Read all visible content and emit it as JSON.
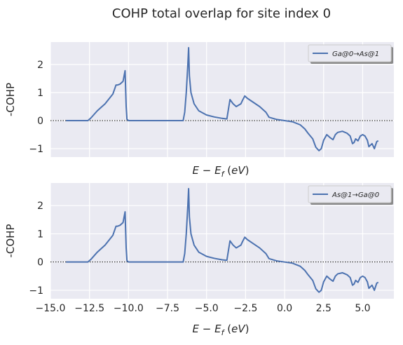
{
  "figure": {
    "title": "COHP total overlap for site index 0",
    "colors": {
      "background": "#eaeaf2",
      "grid": "#ffffff",
      "line": "#4c72b0",
      "zero_line": "#000000",
      "text": "#262626"
    }
  },
  "chart_data": [
    {
      "type": "line",
      "title": "",
      "xlabel": "E - E_f (eV)",
      "ylabel": "-COHP",
      "xlim": [
        -15,
        7
      ],
      "ylim": [
        -1.3,
        2.8
      ],
      "xticks": [
        -15.0,
        -12.5,
        -10.0,
        -7.5,
        -5.0,
        -2.5,
        0.0,
        2.5,
        5.0
      ],
      "xtick_labels": [
        "−15.0",
        "−12.5",
        "−10.0",
        "−7.5",
        "−5.0",
        "−2.5",
        "0.0",
        "2.5",
        "5.0"
      ],
      "show_xtick_labels": false,
      "yticks": [
        -1,
        0,
        1,
        2
      ],
      "ytick_labels": [
        "−1",
        "0",
        "1",
        "2"
      ],
      "grid": true,
      "zero_line": "dotted horizontal at y = 0",
      "legend_position": "top-right",
      "series": [
        {
          "name": "Ga@0→As@1",
          "x": [
            -14.0,
            -12.6,
            -12.4,
            -12.0,
            -11.5,
            -11.0,
            -10.8,
            -10.7,
            -10.55,
            -10.35,
            -10.22,
            -10.15,
            -10.1,
            -10.0,
            -6.5,
            -6.4,
            -6.3,
            -6.2,
            -6.15,
            -6.1,
            -6.05,
            -6.0,
            -5.8,
            -5.5,
            -5.0,
            -4.5,
            -4.0,
            -3.7,
            -3.5,
            -3.3,
            -3.1,
            -2.8,
            -2.7,
            -2.55,
            -2.4,
            -2.0,
            -1.6,
            -1.2,
            -1.0,
            -0.5,
            0.0,
            0.5,
            1.0,
            1.3,
            1.5,
            1.8,
            2.0,
            2.2,
            2.35,
            2.5,
            2.7,
            2.9,
            3.1,
            3.25,
            3.4,
            3.7,
            4.0,
            4.2,
            4.35,
            4.45,
            4.55,
            4.7,
            4.85,
            5.0,
            5.15,
            5.3,
            5.4,
            5.6,
            5.75,
            5.9,
            6.0
          ],
          "y": [
            0.0,
            0.0,
            0.1,
            0.35,
            0.6,
            0.95,
            1.27,
            1.27,
            1.3,
            1.4,
            1.78,
            0.5,
            0.05,
            0.0,
            0.0,
            0.3,
            1.0,
            2.0,
            2.6,
            1.6,
            1.3,
            1.0,
            0.6,
            0.35,
            0.2,
            0.13,
            0.08,
            0.06,
            0.75,
            0.6,
            0.5,
            0.6,
            0.72,
            0.88,
            0.8,
            0.65,
            0.5,
            0.3,
            0.12,
            0.04,
            0.0,
            -0.04,
            -0.15,
            -0.3,
            -0.45,
            -0.65,
            -0.95,
            -1.07,
            -1.0,
            -0.7,
            -0.5,
            -0.6,
            -0.68,
            -0.5,
            -0.42,
            -0.38,
            -0.45,
            -0.55,
            -0.82,
            -0.78,
            -0.65,
            -0.72,
            -0.55,
            -0.5,
            -0.55,
            -0.7,
            -0.93,
            -0.82,
            -1.0,
            -0.75,
            -0.72
          ]
        }
      ]
    },
    {
      "type": "line",
      "title": "",
      "xlabel": "E - E_f (eV)",
      "ylabel": "-COHP",
      "xlim": [
        -15,
        7
      ],
      "ylim": [
        -1.3,
        2.8
      ],
      "xticks": [
        -15.0,
        -12.5,
        -10.0,
        -7.5,
        -5.0,
        -2.5,
        0.0,
        2.5,
        5.0
      ],
      "xtick_labels": [
        "−15.0",
        "−12.5",
        "−10.0",
        "−7.5",
        "−5.0",
        "−2.5",
        "0.0",
        "2.5",
        "5.0"
      ],
      "show_xtick_labels": true,
      "yticks": [
        -1,
        0,
        1,
        2
      ],
      "ytick_labels": [
        "−1",
        "0",
        "1",
        "2"
      ],
      "grid": true,
      "zero_line": "dotted horizontal at y = 0",
      "legend_position": "top-right",
      "series": [
        {
          "name": "As@1→Ga@0",
          "x": [
            -14.0,
            -12.6,
            -12.4,
            -12.0,
            -11.5,
            -11.0,
            -10.8,
            -10.7,
            -10.55,
            -10.35,
            -10.22,
            -10.15,
            -10.1,
            -10.0,
            -6.5,
            -6.4,
            -6.3,
            -6.2,
            -6.15,
            -6.1,
            -6.05,
            -6.0,
            -5.8,
            -5.5,
            -5.0,
            -4.5,
            -4.0,
            -3.7,
            -3.5,
            -3.3,
            -3.1,
            -2.8,
            -2.7,
            -2.55,
            -2.4,
            -2.0,
            -1.6,
            -1.2,
            -1.0,
            -0.5,
            0.0,
            0.5,
            1.0,
            1.3,
            1.5,
            1.8,
            2.0,
            2.2,
            2.35,
            2.5,
            2.7,
            2.9,
            3.1,
            3.25,
            3.4,
            3.7,
            4.0,
            4.2,
            4.35,
            4.45,
            4.55,
            4.7,
            4.85,
            5.0,
            5.15,
            5.3,
            5.4,
            5.6,
            5.75,
            5.9,
            6.0
          ],
          "y": [
            0.0,
            0.0,
            0.1,
            0.35,
            0.6,
            0.95,
            1.27,
            1.27,
            1.3,
            1.4,
            1.78,
            0.5,
            0.05,
            0.0,
            0.0,
            0.3,
            1.0,
            2.0,
            2.6,
            1.6,
            1.3,
            1.0,
            0.6,
            0.35,
            0.2,
            0.13,
            0.08,
            0.06,
            0.75,
            0.6,
            0.5,
            0.6,
            0.72,
            0.88,
            0.8,
            0.65,
            0.5,
            0.3,
            0.12,
            0.04,
            0.0,
            -0.04,
            -0.15,
            -0.3,
            -0.45,
            -0.65,
            -0.95,
            -1.07,
            -1.0,
            -0.7,
            -0.5,
            -0.6,
            -0.68,
            -0.5,
            -0.42,
            -0.38,
            -0.45,
            -0.55,
            -0.82,
            -0.78,
            -0.65,
            -0.72,
            -0.55,
            -0.5,
            -0.55,
            -0.7,
            -0.93,
            -0.82,
            -1.0,
            -0.75,
            -0.72
          ]
        }
      ]
    }
  ]
}
